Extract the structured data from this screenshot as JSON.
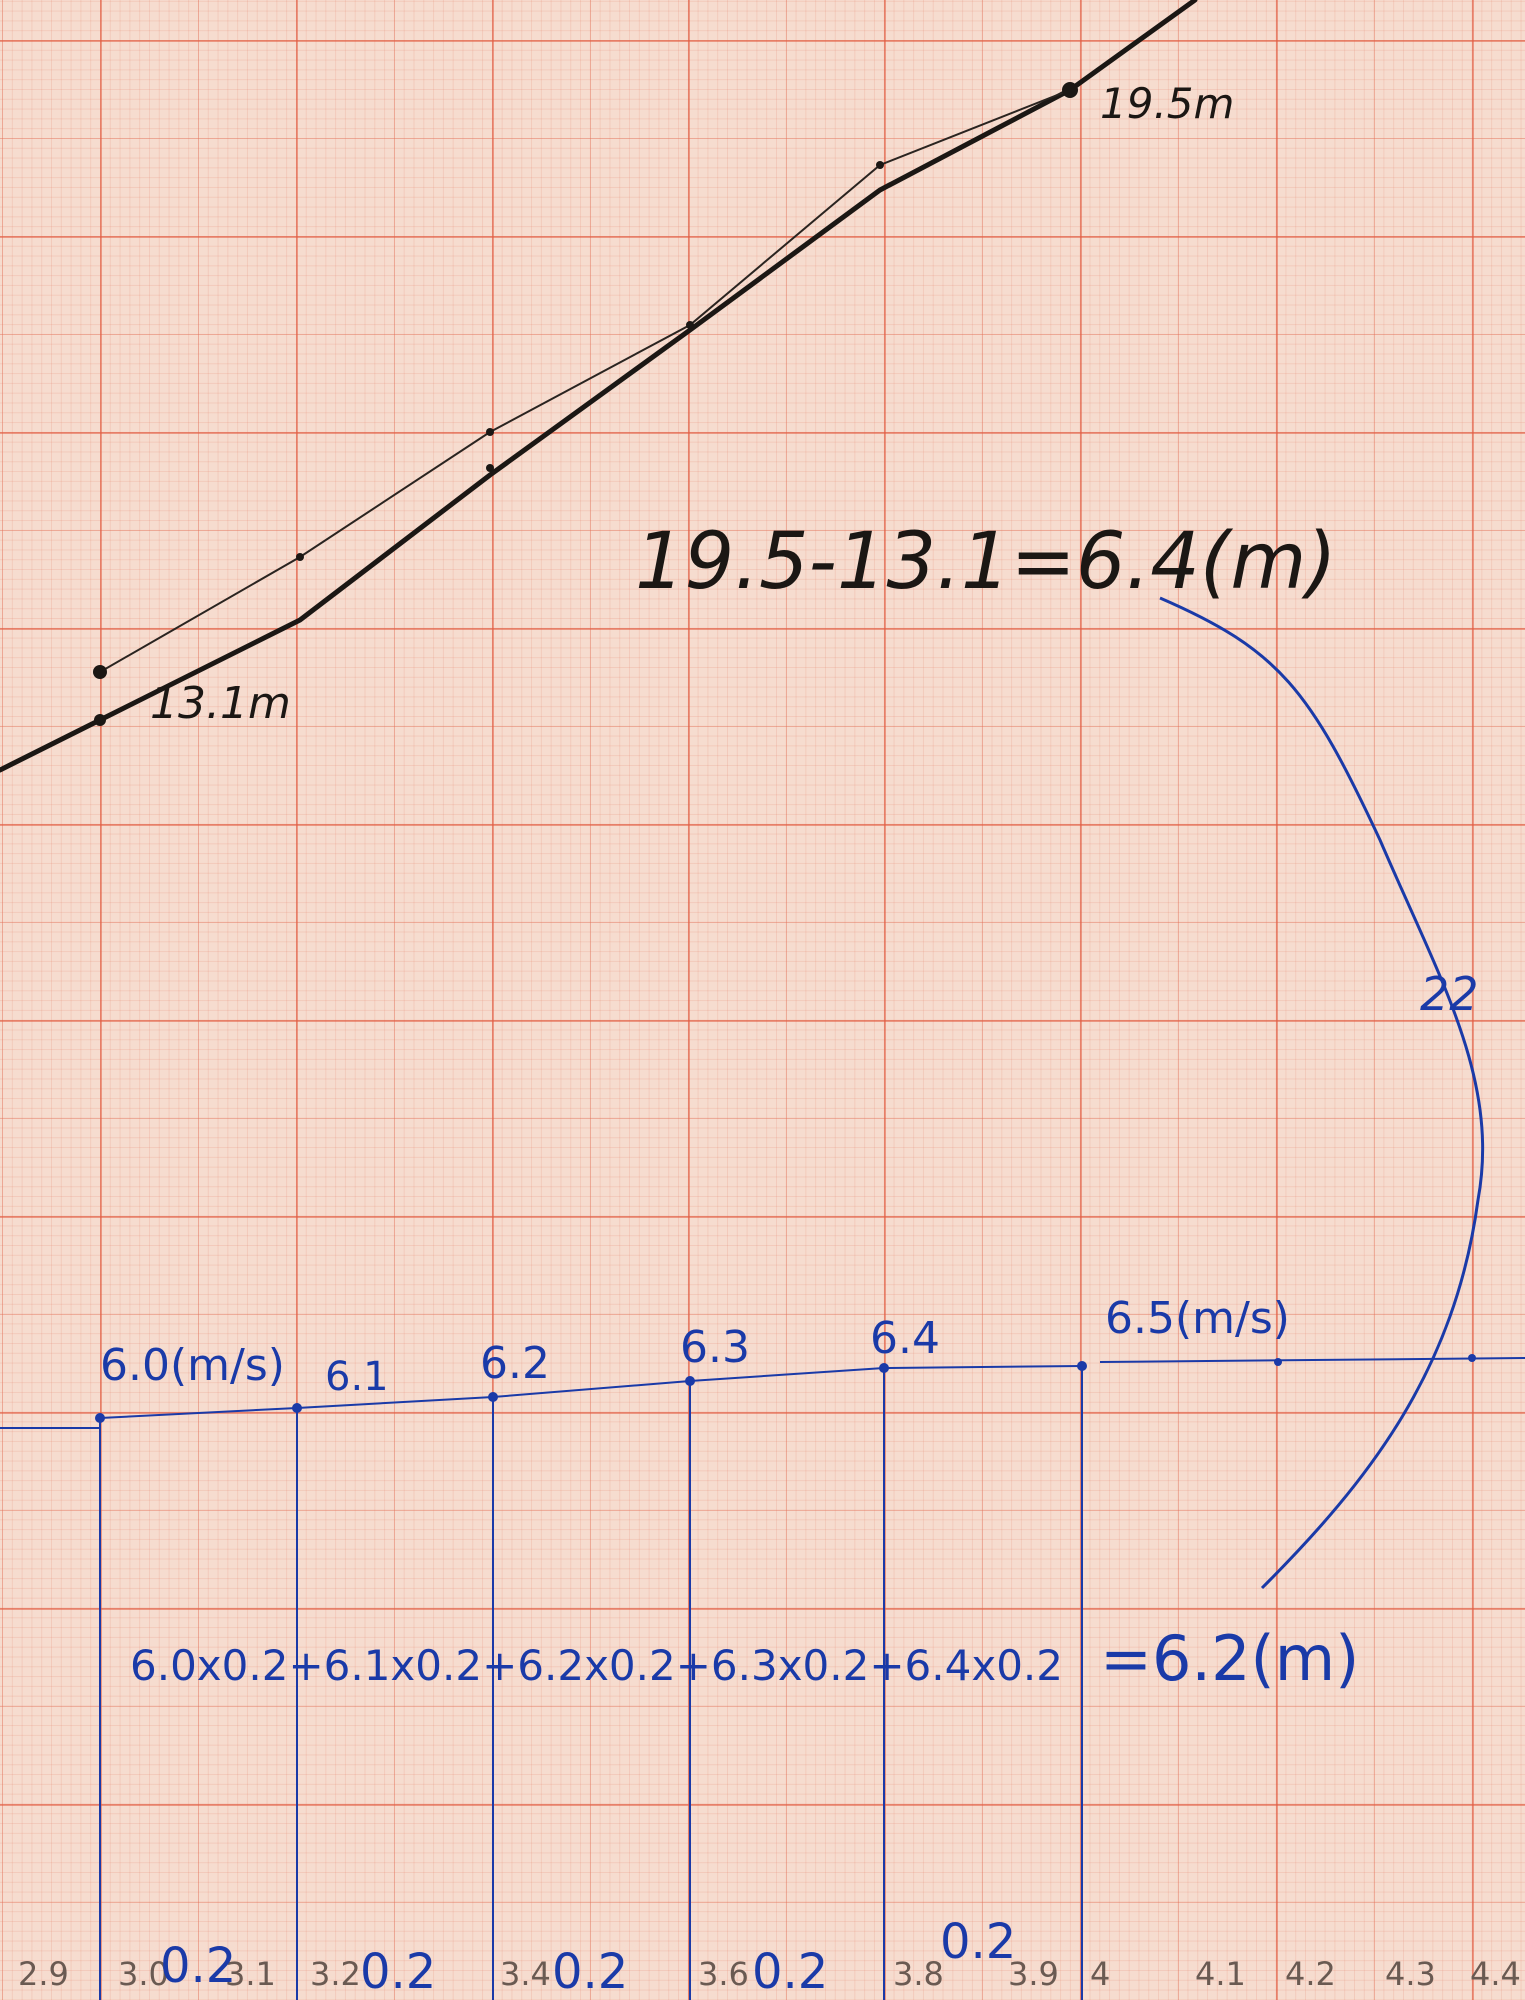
{
  "upper_graph": {
    "label_start": "13.1m",
    "label_end": "19.5m",
    "equation": "19.5-13.1=6.4(m)"
  },
  "lower_graph": {
    "speed_labels": [
      "6.0(m/s)",
      "6.1",
      "6.2",
      "6.3",
      "6.4",
      "6.5(m/s)"
    ],
    "curve_mark": "22",
    "sum_equation": "6.0x0.2+6.1x0.2+6.2x0.2+6.3x0.2+6.4x0.2",
    "sum_result": "=6.2(m)",
    "axis_ticks": [
      "2.9",
      "3.0",
      "3.1",
      "3.2",
      "3.4",
      "3.6",
      "3.8",
      "3.9",
      "4",
      "4.1",
      "4.2",
      "4.3",
      "4.4"
    ],
    "interval_labels": [
      "0.2",
      "0.2",
      "0.2",
      "0.2",
      "0.2"
    ]
  },
  "colors": {
    "paper": "#f6dccf",
    "grid": "#e25c42",
    "black_ink": "#1b1714",
    "blue_ink": "#1a3aa8"
  }
}
